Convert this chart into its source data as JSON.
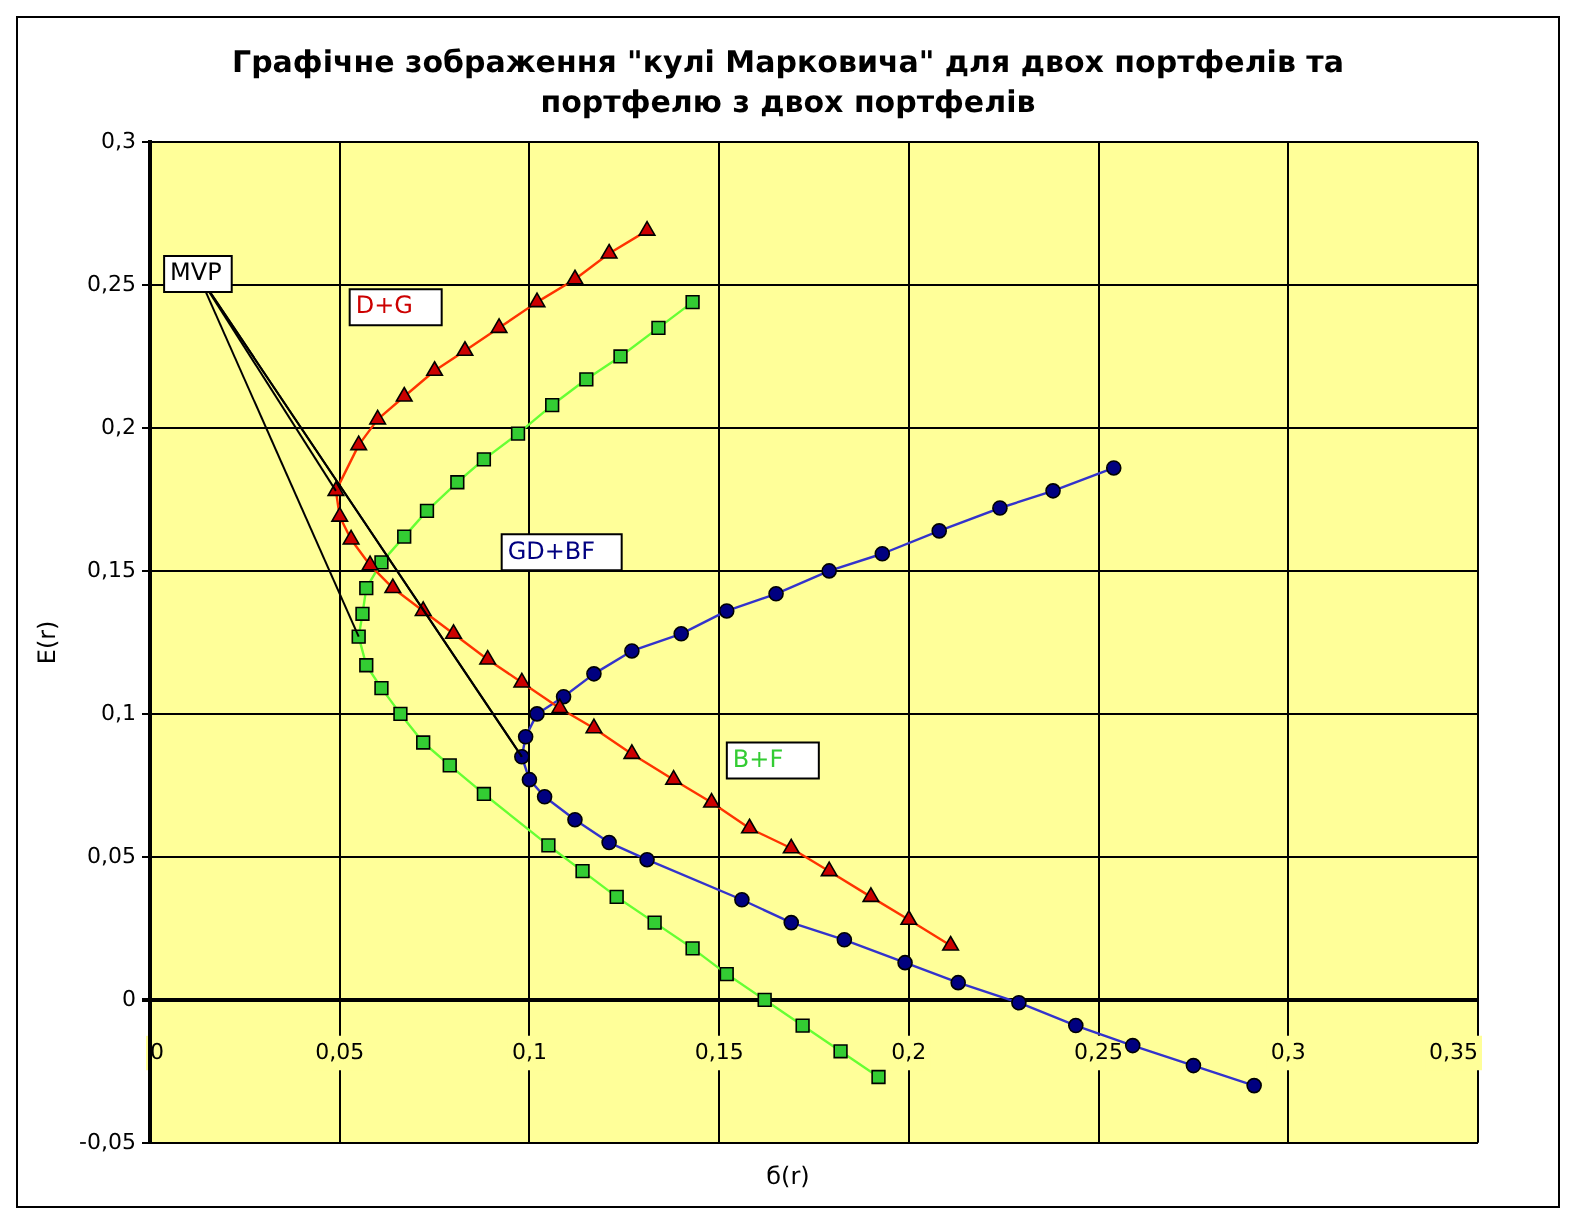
{
  "chart_data": {
    "type": "line",
    "title": "Графічне зображення \"кулі Марковича\" для двох портфелів та портфелю з двох портфелів",
    "xlabel": "б(r)",
    "ylabel": "E(r)",
    "xlim": [
      0,
      0.35
    ],
    "ylim": [
      -0.05,
      0.3
    ],
    "xticks": [
      0,
      {
        "value": 0.05,
        "label": "0,05"
      },
      {
        "value": 0.1,
        "label": "0,1"
      },
      {
        "value": 0.15,
        "label": "0,15"
      },
      {
        "value": 0.2,
        "label": "0,2"
      },
      {
        "value": 0.25,
        "label": "0,25"
      },
      {
        "value": 0.3,
        "label": "0,3"
      },
      {
        "value": 0.35,
        "label": "0,35"
      }
    ],
    "yticks": [
      {
        "value": -0.05,
        "label": "-0,05"
      },
      0,
      {
        "value": 0.05,
        "label": "0,05"
      },
      {
        "value": 0.1,
        "label": "0,1"
      },
      {
        "value": 0.15,
        "label": "0,15"
      },
      {
        "value": 0.2,
        "label": "0,2"
      },
      {
        "value": 0.25,
        "label": "0,25"
      },
      {
        "value": 0.3,
        "label": "0,3"
      }
    ],
    "grid": true,
    "legend": false,
    "annotations": [
      {
        "text": "MVP",
        "x": 0.098,
        "y": 0.085
      }
    ],
    "series": [
      {
        "name": "D+G",
        "color": "#cc0000",
        "marker": "triangle",
        "x": [
          0.131,
          0.121,
          0.112,
          0.102,
          0.092,
          0.083,
          0.075,
          0.067,
          0.06,
          0.055,
          0.049,
          0.05,
          0.053,
          0.058,
          0.064,
          0.072,
          0.08,
          0.089,
          0.098,
          0.108,
          0.117,
          0.127,
          0.138,
          0.148,
          0.158,
          0.169,
          0.179,
          0.19,
          0.2,
          0.211
        ],
        "values": [
          0.269,
          0.261,
          0.252,
          0.244,
          0.235,
          0.227,
          0.22,
          0.211,
          0.203,
          0.194,
          0.178,
          0.169,
          0.161,
          0.152,
          0.144,
          0.136,
          0.128,
          0.119,
          0.111,
          0.102,
          0.095,
          0.086,
          0.077,
          0.069,
          0.06,
          0.053,
          0.045,
          0.036,
          0.028,
          0.019
        ]
      },
      {
        "name": "GD+BF",
        "color": "#000080",
        "marker": "circle",
        "x": [
          0.254,
          0.238,
          0.224,
          0.208,
          0.193,
          0.179,
          0.165,
          0.152,
          0.14,
          0.127,
          0.117,
          0.109,
          0.102,
          0.099,
          0.098,
          0.1,
          0.104,
          0.112,
          0.121,
          0.131,
          0.156,
          0.169,
          0.183,
          0.199,
          0.213,
          0.229,
          0.244,
          0.259,
          0.275,
          0.291
        ],
        "values": [
          0.186,
          0.178,
          0.172,
          0.164,
          0.156,
          0.15,
          0.142,
          0.136,
          0.128,
          0.122,
          0.114,
          0.106,
          0.1,
          0.092,
          0.085,
          0.077,
          0.071,
          0.063,
          0.055,
          0.049,
          0.035,
          0.027,
          0.021,
          0.013,
          0.006,
          -0.001,
          -0.009,
          -0.016,
          -0.023,
          -0.03
        ]
      },
      {
        "name": "B+F",
        "color": "#33cc33",
        "marker": "square",
        "x": [
          0.143,
          0.134,
          0.124,
          0.115,
          0.106,
          0.097,
          0.088,
          0.081,
          0.073,
          0.067,
          0.061,
          0.057,
          0.056,
          0.055,
          0.057,
          0.061,
          0.066,
          0.072,
          0.079,
          0.088,
          0.105,
          0.114,
          0.123,
          0.133,
          0.143,
          0.152,
          0.162,
          0.172,
          0.182,
          0.192
        ],
        "values": [
          0.244,
          0.235,
          0.225,
          0.217,
          0.208,
          0.198,
          0.189,
          0.181,
          0.171,
          0.162,
          0.153,
          0.144,
          0.135,
          0.127,
          0.117,
          0.109,
          0.1,
          0.09,
          0.082,
          0.072,
          0.054,
          0.045,
          0.036,
          0.027,
          0.018,
          0.009,
          0.0,
          -0.009,
          -0.018,
          -0.027
        ]
      }
    ]
  }
}
